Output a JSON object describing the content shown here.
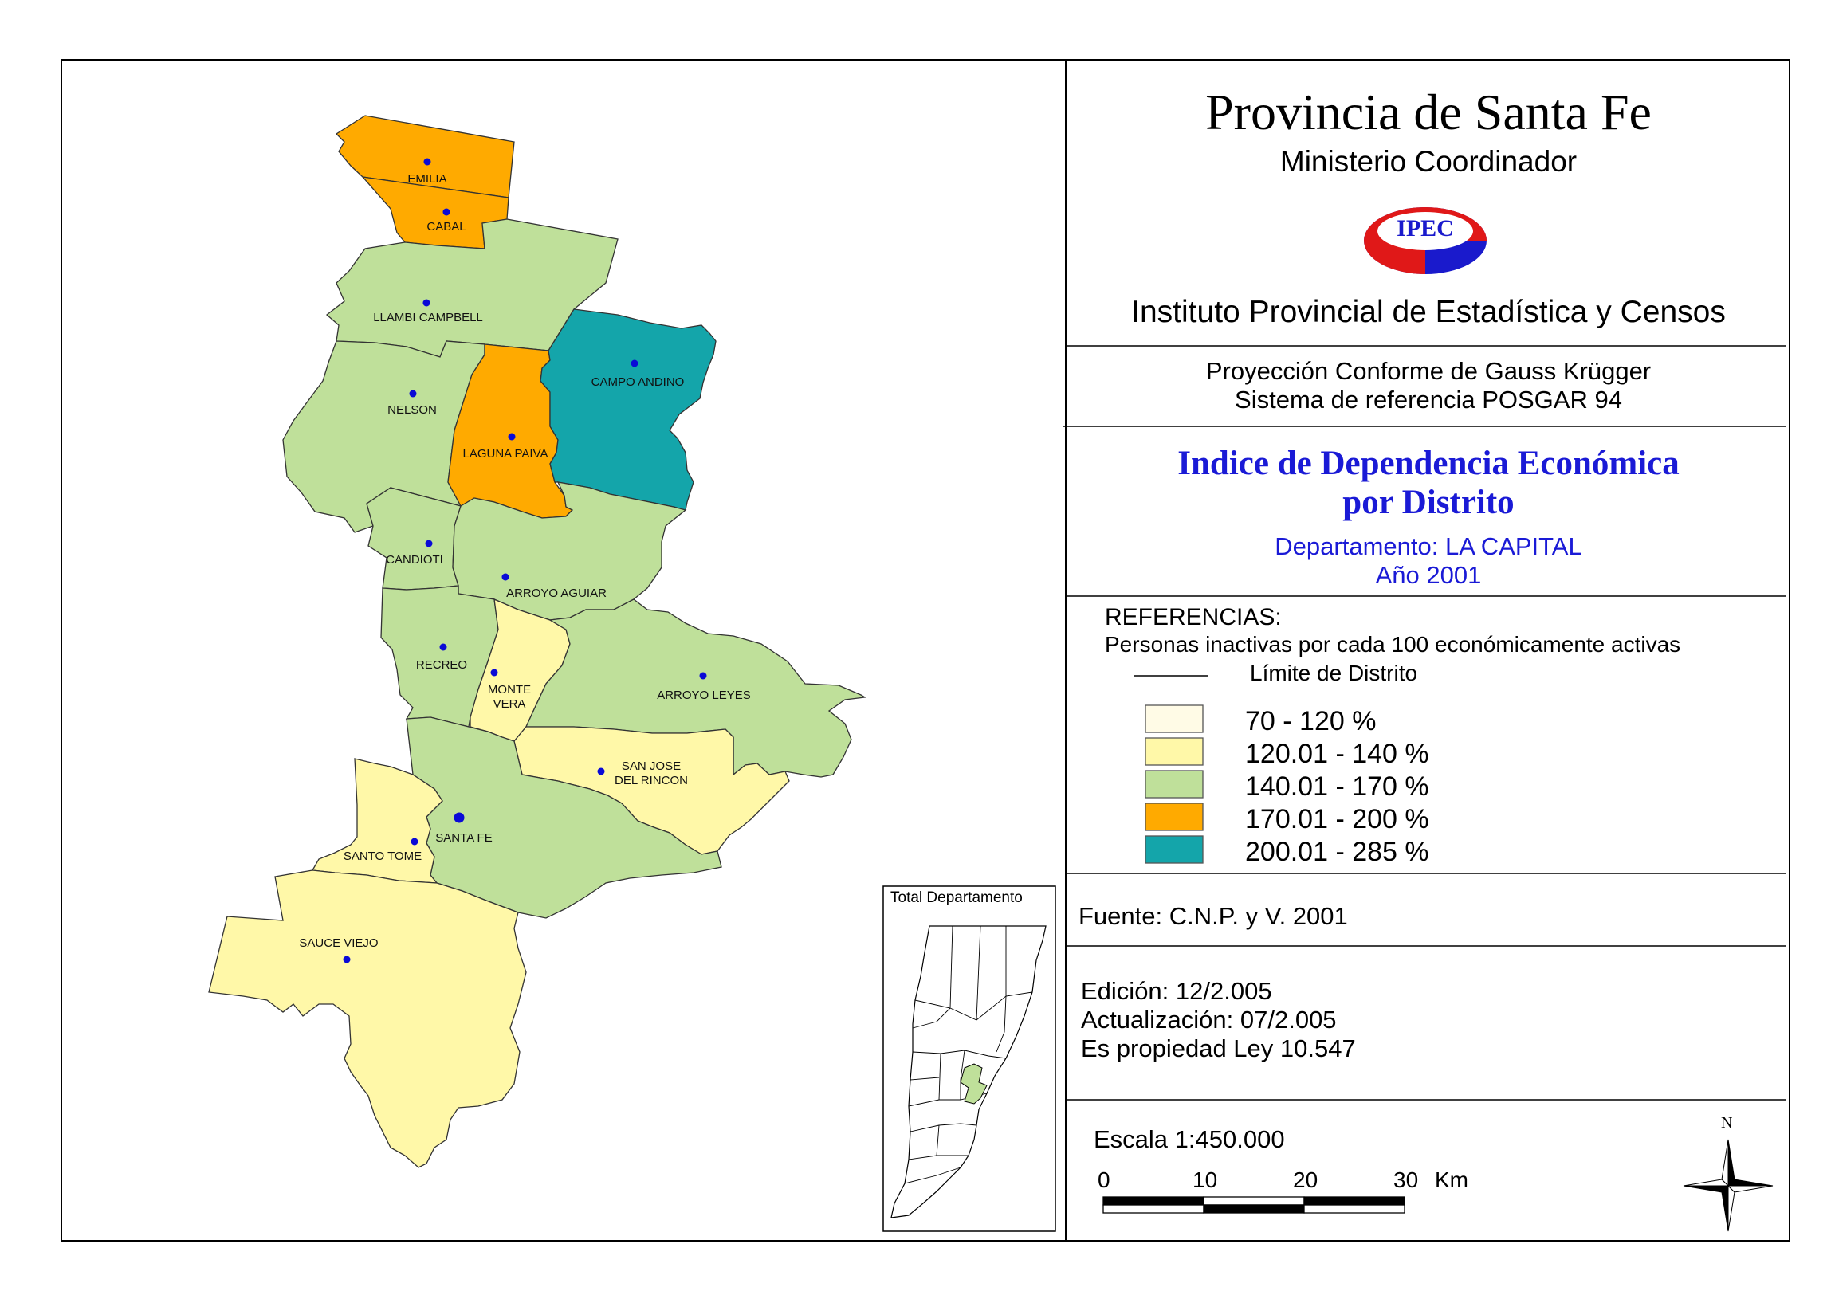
{
  "header": {
    "title": "Provincia de Santa Fe",
    "ministry": "Ministerio Coordinador",
    "logo_text": "IPEC",
    "institute": "Instituto Provincial de Estadística y Censos"
  },
  "projection": {
    "line1": "Proyección Conforme de Gauss Krügger",
    "line2": "Sistema de referencia POSGAR 94"
  },
  "map_title": {
    "line1": "Indice de Dependencia Económica",
    "line2": "por Distrito",
    "department": "Departamento:  LA CAPITAL",
    "year": "Año 2001"
  },
  "legend": {
    "title": "REFERENCIAS:",
    "subtitle": "Personas inactivas por cada 100 económicamente activas",
    "boundary_label": "Límite de  Distrito",
    "classes": [
      {
        "label": "70 - 120 %",
        "color": "#fffbe6"
      },
      {
        "label": "120.01 - 140 %",
        "color": "#fff8a8"
      },
      {
        "label": "140.01 - 170 %",
        "color": "#bfe09a"
      },
      {
        "label": "170.01 - 200 %",
        "color": "#ffaa00"
      },
      {
        "label": "200.01 - 285 %",
        "color": "#14a5aa"
      }
    ]
  },
  "source": "Fuente:  C.N.P. y V. 2001",
  "edition": {
    "edicion": "Edición:  12/2.005",
    "actualizacion": "Actualización:  07/2.005",
    "propiedad": "Es propiedad Ley 10.547"
  },
  "scale": {
    "label": "Escala 1:450.000",
    "ticks": [
      "0",
      "10",
      "20",
      "30"
    ],
    "unit": "Km"
  },
  "inset_title": "Total Departamento",
  "north_label": "N",
  "districts": [
    {
      "name": "EMILIA",
      "class": 3
    },
    {
      "name": "CABAL",
      "class": 3
    },
    {
      "name": "LLAMBI CAMPBELL",
      "class": 2
    },
    {
      "name": "NELSON",
      "class": 2
    },
    {
      "name": "LAGUNA PAIVA",
      "class": 3
    },
    {
      "name": "CAMPO ANDINO",
      "class": 4
    },
    {
      "name": "CANDIOTI",
      "class": 2
    },
    {
      "name": "ARROYO AGUIAR",
      "class": 2
    },
    {
      "name": "RECREO",
      "class": 2
    },
    {
      "name": "MONTE",
      "name2": "VERA",
      "class": 1
    },
    {
      "name": "ARROYO LEYES",
      "class": 2
    },
    {
      "name": "SAN JOSE",
      "name2": "DEL RINCON",
      "class": 1
    },
    {
      "name": "SANTA FE",
      "class": 2
    },
    {
      "name": "SANTO TOME",
      "class": 1
    },
    {
      "name": "SAUCE VIEJO",
      "class": 1
    }
  ]
}
